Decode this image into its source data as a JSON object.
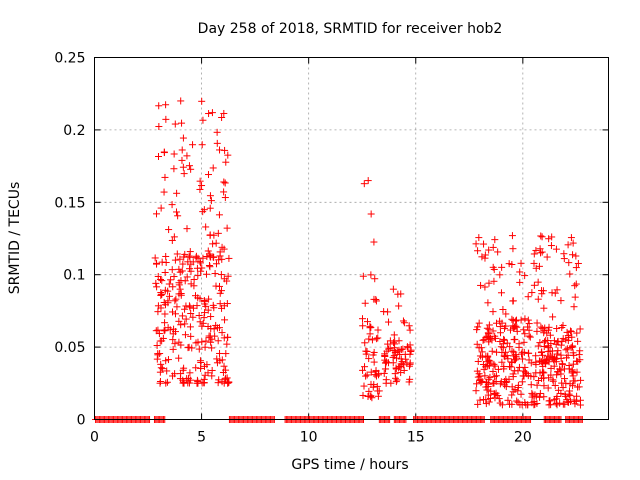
{
  "chart_data": {
    "type": "scatter",
    "title": "Day 258 of 2018, SRMTID for receiver hob2",
    "xlabel": "GPS time / hours",
    "ylabel": "SRMTID / TECUs",
    "xlim": [
      0,
      24
    ],
    "ylim": [
      0,
      0.25
    ],
    "grid": true,
    "marker": "+",
    "series_color": "#ff0000",
    "xticks": [
      0,
      5,
      10,
      15,
      20
    ],
    "xtick_labels": [
      "0",
      "5",
      "10",
      "15",
      "20"
    ],
    "yticks": [
      0,
      0.05,
      0.1,
      0.15,
      0.2,
      0.25
    ],
    "ytick_labels": [
      "0",
      "0.05",
      "0.1",
      "0.15",
      "0.2",
      "0.25"
    ],
    "clusters": [
      {
        "name": "hours 2.8-6.3",
        "x_range": [
          2.8,
          6.3
        ],
        "y_range": [
          0.025,
          0.22
        ],
        "count": 330
      },
      {
        "name": "hours 12.5-13.3",
        "x_range": [
          12.5,
          13.3
        ],
        "y_range": [
          0.015,
          0.165
        ],
        "count": 55
      },
      {
        "name": "hours 13.5-14.8",
        "x_range": [
          13.5,
          14.8
        ],
        "y_range": [
          0.025,
          0.09
        ],
        "count": 75
      },
      {
        "name": "hours 17.8-22.7",
        "x_range": [
          17.8,
          22.7
        ],
        "y_range": [
          0.01,
          0.127
        ],
        "count": 460
      }
    ],
    "zero_baseline_segments": [
      [
        0.05,
        2.6
      ],
      [
        2.8,
        3.3
      ],
      [
        6.3,
        8.4
      ],
      [
        8.9,
        12.6
      ],
      [
        13.3,
        13.8
      ],
      [
        14.0,
        14.6
      ],
      [
        14.9,
        18.2
      ],
      [
        18.5,
        20.4
      ],
      [
        21.0,
        21.8
      ],
      [
        22.0,
        22.8
      ]
    ]
  }
}
